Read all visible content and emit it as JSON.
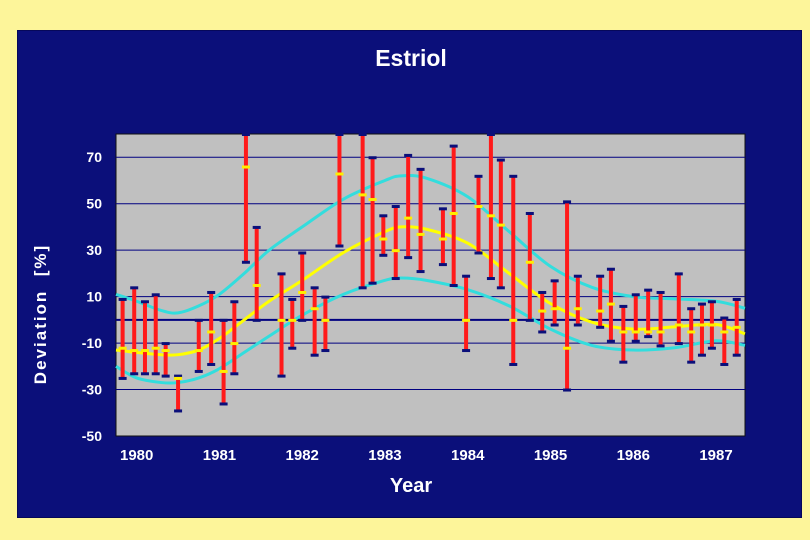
{
  "colors": {
    "page_background": "#fdf59a",
    "panel_background": "#0b0f7a",
    "plot_background": "#c0c0c0",
    "bar_color": "#ff1a1a",
    "mean_tick_color": "#ffee00",
    "cap_color": "#0b0f7a",
    "center_curve": "#ffff00",
    "band_curves": "#33dddd",
    "grid": "#000080"
  },
  "chart_data": {
    "type": "errorbar",
    "title": "Estriol",
    "xlabel": "Year",
    "ylabel": "Deviation  [%]",
    "ylim": [
      -50,
      80
    ],
    "yticks": [
      -50,
      -30,
      -10,
      10,
      30,
      50,
      70
    ],
    "xlim": [
      1979.75,
      1987.35
    ],
    "xticks": [
      1980,
      1981,
      1982,
      1983,
      1984,
      1985,
      1986,
      1987
    ],
    "grid": true,
    "reference_line": 0,
    "error_bars": [
      {
        "x": 1979.83,
        "low": -25,
        "high": 9,
        "mean": -12
      },
      {
        "x": 1979.97,
        "low": -23,
        "high": 14,
        "mean": -13
      },
      {
        "x": 1980.1,
        "low": -23,
        "high": 8,
        "mean": -13
      },
      {
        "x": 1980.23,
        "low": -23,
        "high": 11,
        "mean": -12
      },
      {
        "x": 1980.35,
        "low": -24,
        "high": -10,
        "mean": -13
      },
      {
        "x": 1980.5,
        "low": -39,
        "high": -24,
        "mean": -25
      },
      {
        "x": 1980.75,
        "low": -22,
        "high": 0,
        "mean": -13
      },
      {
        "x": 1980.9,
        "low": -19,
        "high": 12,
        "mean": -5
      },
      {
        "x": 1981.05,
        "low": -36,
        "high": 0,
        "mean": -22
      },
      {
        "x": 1981.18,
        "low": -23,
        "high": 8,
        "mean": -10
      },
      {
        "x": 1981.32,
        "low": 25,
        "high": 80,
        "mean": 66
      },
      {
        "x": 1981.45,
        "low": 0,
        "high": 40,
        "mean": 15
      },
      {
        "x": 1981.75,
        "low": -24,
        "high": 20,
        "mean": 0
      },
      {
        "x": 1981.88,
        "low": -12,
        "high": 9,
        "mean": 0
      },
      {
        "x": 1982.0,
        "low": 0,
        "high": 29,
        "mean": 12
      },
      {
        "x": 1982.15,
        "low": -15,
        "high": 14,
        "mean": 5
      },
      {
        "x": 1982.28,
        "low": -13,
        "high": 10,
        "mean": 0
      },
      {
        "x": 1982.45,
        "low": 32,
        "high": 80,
        "mean": 63
      },
      {
        "x": 1982.73,
        "low": 14,
        "high": 80,
        "mean": 54
      },
      {
        "x": 1982.85,
        "low": 16,
        "high": 70,
        "mean": 52
      },
      {
        "x": 1982.98,
        "low": 28,
        "high": 45,
        "mean": 35
      },
      {
        "x": 1983.13,
        "low": 18,
        "high": 49,
        "mean": 30
      },
      {
        "x": 1983.28,
        "low": 27,
        "high": 71,
        "mean": 44
      },
      {
        "x": 1983.43,
        "low": 21,
        "high": 65,
        "mean": 37
      },
      {
        "x": 1983.7,
        "low": 24,
        "high": 48,
        "mean": 35
      },
      {
        "x": 1983.83,
        "low": 15,
        "high": 75,
        "mean": 46
      },
      {
        "x": 1983.98,
        "low": -13,
        "high": 19,
        "mean": 0
      },
      {
        "x": 1984.13,
        "low": 29,
        "high": 62,
        "mean": 49
      },
      {
        "x": 1984.28,
        "low": 18,
        "high": 80,
        "mean": 45
      },
      {
        "x": 1984.4,
        "low": 14,
        "high": 69,
        "mean": 41
      },
      {
        "x": 1984.55,
        "low": -19,
        "high": 62,
        "mean": 0
      },
      {
        "x": 1984.75,
        "low": 0,
        "high": 46,
        "mean": 25
      },
      {
        "x": 1984.9,
        "low": -5,
        "high": 12,
        "mean": 4
      },
      {
        "x": 1985.05,
        "low": -2,
        "high": 17,
        "mean": 5
      },
      {
        "x": 1985.2,
        "low": -30,
        "high": 51,
        "mean": -12
      },
      {
        "x": 1985.33,
        "low": -2,
        "high": 19,
        "mean": 5
      },
      {
        "x": 1985.6,
        "low": -3,
        "high": 19,
        "mean": 4
      },
      {
        "x": 1985.73,
        "low": -9,
        "high": 22,
        "mean": 7
      },
      {
        "x": 1985.88,
        "low": -18,
        "high": 6,
        "mean": -5
      },
      {
        "x": 1986.03,
        "low": -9,
        "high": 11,
        "mean": -5
      },
      {
        "x": 1986.18,
        "low": -7,
        "high": 13,
        "mean": -5
      },
      {
        "x": 1986.33,
        "low": -11,
        "high": 12,
        "mean": -5
      },
      {
        "x": 1986.55,
        "low": -10,
        "high": 20,
        "mean": -2
      },
      {
        "x": 1986.7,
        "low": -18,
        "high": 5,
        "mean": -5
      },
      {
        "x": 1986.83,
        "low": -15,
        "high": 7,
        "mean": -2
      },
      {
        "x": 1986.95,
        "low": -12,
        "high": 8,
        "mean": -2
      },
      {
        "x": 1987.1,
        "low": -19,
        "high": 1,
        "mean": -5
      },
      {
        "x": 1987.25,
        "low": -15,
        "high": 9,
        "mean": -3
      }
    ],
    "curves": [
      {
        "role": "upper_band",
        "points": [
          [
            1979.75,
            11
          ],
          [
            1980.0,
            8
          ],
          [
            1980.3,
            4
          ],
          [
            1980.5,
            3
          ],
          [
            1980.75,
            6
          ],
          [
            1981.0,
            11
          ],
          [
            1981.3,
            20
          ],
          [
            1981.6,
            30
          ],
          [
            1982.0,
            40
          ],
          [
            1982.5,
            52
          ],
          [
            1983.0,
            60
          ],
          [
            1983.2,
            62
          ],
          [
            1983.5,
            61
          ],
          [
            1984.0,
            53
          ],
          [
            1984.5,
            38
          ],
          [
            1985.0,
            23
          ],
          [
            1985.5,
            14
          ],
          [
            1986.0,
            10
          ],
          [
            1986.5,
            9
          ],
          [
            1987.0,
            8
          ],
          [
            1987.35,
            5
          ]
        ]
      },
      {
        "role": "center",
        "points": [
          [
            1979.75,
            -13
          ],
          [
            1980.0,
            -14
          ],
          [
            1980.3,
            -15
          ],
          [
            1980.5,
            -15
          ],
          [
            1980.75,
            -13
          ],
          [
            1981.0,
            -8
          ],
          [
            1981.3,
            0
          ],
          [
            1981.6,
            8
          ],
          [
            1982.0,
            17
          ],
          [
            1982.5,
            29
          ],
          [
            1983.0,
            38
          ],
          [
            1983.2,
            40
          ],
          [
            1983.5,
            39
          ],
          [
            1984.0,
            33
          ],
          [
            1984.5,
            20
          ],
          [
            1985.0,
            7
          ],
          [
            1985.5,
            -1
          ],
          [
            1986.0,
            -4
          ],
          [
            1986.5,
            -3
          ],
          [
            1987.0,
            -2
          ],
          [
            1987.35,
            -6
          ]
        ]
      },
      {
        "role": "lower_band",
        "points": [
          [
            1979.75,
            -20
          ],
          [
            1980.0,
            -25
          ],
          [
            1980.3,
            -27
          ],
          [
            1980.5,
            -27
          ],
          [
            1980.75,
            -25
          ],
          [
            1981.0,
            -21
          ],
          [
            1981.3,
            -14
          ],
          [
            1981.6,
            -7
          ],
          [
            1982.0,
            2
          ],
          [
            1982.5,
            11
          ],
          [
            1983.0,
            17
          ],
          [
            1983.2,
            18
          ],
          [
            1983.5,
            17
          ],
          [
            1984.0,
            13
          ],
          [
            1984.5,
            6
          ],
          [
            1985.0,
            -4
          ],
          [
            1985.5,
            -11
          ],
          [
            1986.0,
            -13
          ],
          [
            1986.5,
            -12
          ],
          [
            1987.0,
            -9
          ],
          [
            1987.35,
            -11
          ]
        ]
      }
    ]
  }
}
